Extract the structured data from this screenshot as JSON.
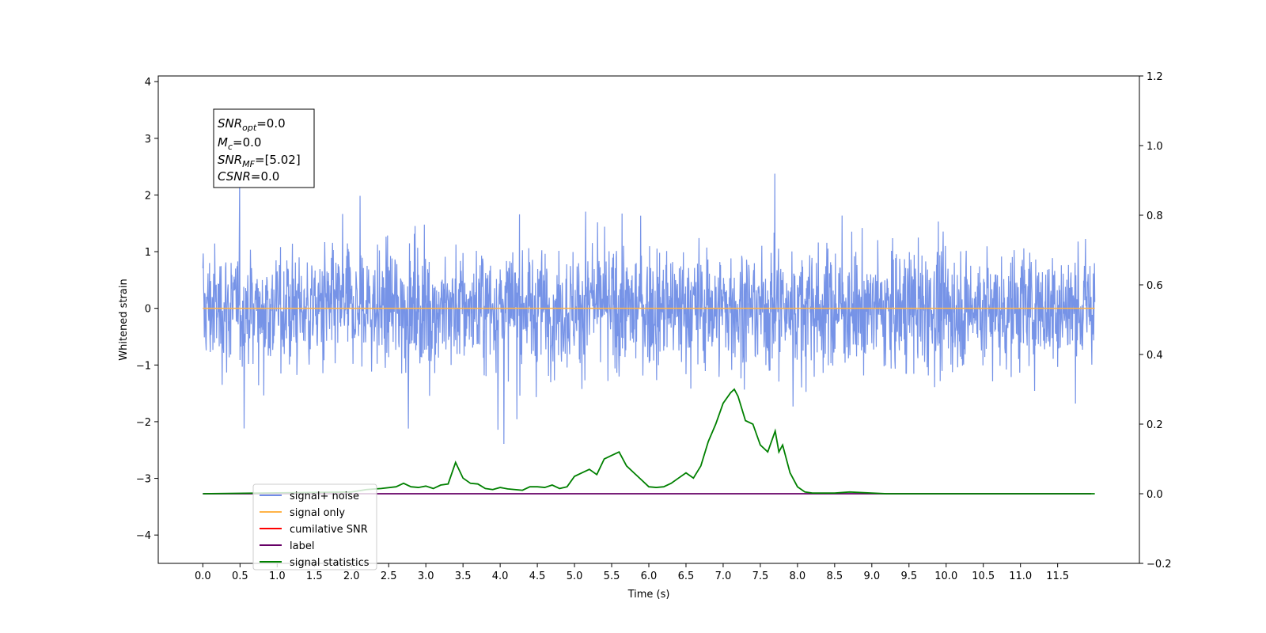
{
  "chart_data": {
    "type": "line",
    "xlabel": "Time (s)",
    "ylabel": "Whitened strain",
    "xlim": [
      -0.6,
      12.6
    ],
    "ylim": [
      -4.5,
      4.1
    ],
    "y2lim": [
      -0.2,
      1.2
    ],
    "x_ticks": [
      "0.0",
      "0.5",
      "1.0",
      "1.5",
      "2.0",
      "2.5",
      "3.0",
      "3.5",
      "4.0",
      "4.5",
      "5.0",
      "5.5",
      "6.0",
      "6.5",
      "7.0",
      "7.5",
      "8.0",
      "8.5",
      "9.0",
      "9.5",
      "10.0",
      "10.5",
      "11.0",
      "11.5"
    ],
    "y_ticks": [
      "4",
      "3",
      "2",
      "1",
      "0",
      "−1",
      "−2",
      "−3",
      "−4"
    ],
    "y2_ticks": [
      "1.2",
      "1.0",
      "0.8",
      "0.6",
      "0.4",
      "0.2",
      "0.0",
      "−0.2"
    ],
    "grid": false,
    "legend_position": "lower-left",
    "colors": {
      "noise": "#6f8de6",
      "signal": "#ffb347",
      "snr": "#ff0000",
      "label": "#660066",
      "stats": "#008000"
    },
    "series": [
      {
        "name": "signal+ noise",
        "note_shape": "whitened noise band approx within [-2, 2] with spikes",
        "x_range": [
          0.0,
          12.0
        ]
      },
      {
        "name": "signal only",
        "x": [
          0.0,
          12.0
        ],
        "y": [
          0.0,
          0.0
        ]
      },
      {
        "name": "cumilative SNR"
      },
      {
        "name": "label",
        "x": [
          0.0,
          11.95
        ],
        "y": [
          0.0,
          0.0
        ]
      },
      {
        "name": "signal statistics",
        "x": [
          0.0,
          2.0,
          2.2,
          2.4,
          2.6,
          2.7,
          2.8,
          2.9,
          3.0,
          3.1,
          3.2,
          3.3,
          3.4,
          3.5,
          3.6,
          3.7,
          3.8,
          3.9,
          4.0,
          4.1,
          4.2,
          4.3,
          4.4,
          4.5,
          4.6,
          4.7,
          4.8,
          4.9,
          5.0,
          5.1,
          5.2,
          5.3,
          5.4,
          5.5,
          5.6,
          5.7,
          5.8,
          5.9,
          6.0,
          6.1,
          6.2,
          6.3,
          6.4,
          6.5,
          6.6,
          6.7,
          6.8,
          6.9,
          7.0,
          7.1,
          7.15,
          7.2,
          7.3,
          7.4,
          7.5,
          7.6,
          7.7,
          7.75,
          7.8,
          7.9,
          8.0,
          8.1,
          8.2,
          8.5,
          8.7,
          9.0,
          9.2,
          12.0
        ],
        "y": [
          0.0,
          0.005,
          0.012,
          0.015,
          0.02,
          0.03,
          0.02,
          0.018,
          0.022,
          0.015,
          0.025,
          0.028,
          0.09,
          0.045,
          0.03,
          0.028,
          0.015,
          0.012,
          0.018,
          0.014,
          0.012,
          0.01,
          0.02,
          0.02,
          0.018,
          0.025,
          0.015,
          0.02,
          0.05,
          0.06,
          0.07,
          0.055,
          0.1,
          0.11,
          0.12,
          0.08,
          0.06,
          0.04,
          0.02,
          0.018,
          0.02,
          0.03,
          0.045,
          0.06,
          0.045,
          0.08,
          0.15,
          0.2,
          0.26,
          0.29,
          0.3,
          0.28,
          0.21,
          0.2,
          0.14,
          0.12,
          0.18,
          0.12,
          0.14,
          0.06,
          0.02,
          0.005,
          0.002,
          0.002,
          0.005,
          0.002,
          0.0,
          0.0
        ]
      }
    ]
  },
  "legend": {
    "items": [
      {
        "label": "signal+ noise",
        "color": "#6f8de6"
      },
      {
        "label": "signal only",
        "color": "#ffb347"
      },
      {
        "label": "cumilative SNR",
        "color": "#ff0000"
      },
      {
        "label": "label",
        "color": "#660066"
      },
      {
        "label": "signal statistics",
        "color": "#008000"
      }
    ]
  },
  "info_box": {
    "snr_opt": {
      "symbol": "SNR",
      "sub": "opt",
      "value": "=0.0"
    },
    "mc": {
      "symbol": "M",
      "sub": "c",
      "value": "=0.0"
    },
    "snr_mf": {
      "symbol": "SNR",
      "sub": "MF",
      "value": "=[5.02]"
    },
    "csnr": {
      "symbol": "CSNR",
      "value": "=0.0"
    }
  }
}
